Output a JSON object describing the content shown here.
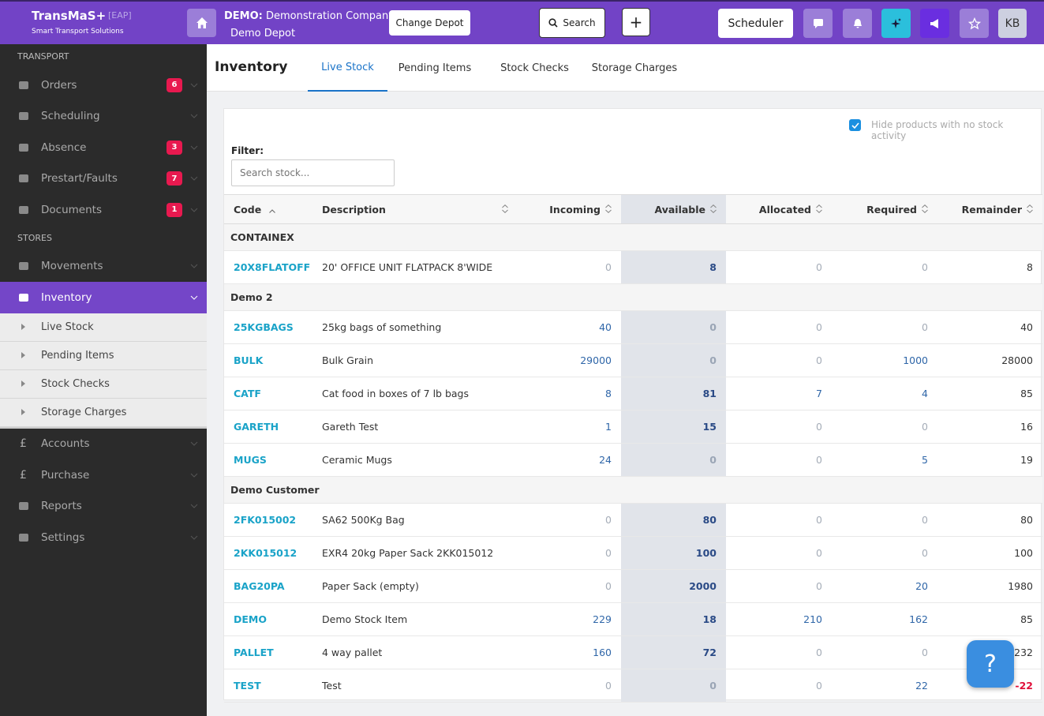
{
  "header": {
    "brand": "TransMaS+",
    "tag": "[EAP]",
    "tagline": "Smart Transport Solutions",
    "company_prefix": "DEMO:",
    "company": "Demonstration Company",
    "depot": "Demo Depot",
    "change_depot": "Change Depot",
    "search": "Search",
    "add": "+",
    "scheduler": "Scheduler",
    "avatar": "KB"
  },
  "sidebar": {
    "sections": [
      {
        "title": "TRANSPORT",
        "items": [
          {
            "label": "Orders",
            "badge": 6
          },
          {
            "label": "Scheduling"
          },
          {
            "label": "Absence",
            "badge": 3
          },
          {
            "label": "Prestart/Faults",
            "badge": 7
          },
          {
            "label": "Documents",
            "badge": 1
          }
        ]
      },
      {
        "title": "STORES",
        "items": [
          {
            "label": "Movements"
          },
          {
            "label": "Inventory",
            "active": true,
            "children": [
              "Live Stock",
              "Pending Items",
              "Stock Checks",
              "Storage Charges"
            ]
          },
          {
            "label": "Accounts",
            "icon": "£"
          },
          {
            "label": "Purchase",
            "icon": "£"
          },
          {
            "label": "Reports"
          },
          {
            "label": "Settings"
          }
        ]
      }
    ]
  },
  "main": {
    "title": "Inventory",
    "tabs": [
      "Live Stock",
      "Pending Items",
      "Stock Checks",
      "Storage Charges"
    ],
    "active_tab": 0,
    "hide_label": "Hide products with no stock activity",
    "filter_label": "Filter:",
    "filter_placeholder": "Search stock...",
    "help": "?"
  },
  "table": {
    "columns": [
      "Code",
      "Description",
      "Incoming",
      "Available",
      "Allocated",
      "Required",
      "Remainder"
    ],
    "sorted_column": 0,
    "highlight_column": 3,
    "groups": [
      {
        "name": "CONTAINEX",
        "rows": [
          [
            "20X8FLATOFF",
            "20' OFFICE UNIT FLATPACK 8'WIDE",
            0,
            8,
            0,
            0,
            8
          ]
        ]
      },
      {
        "name": "Demo 2",
        "rows": [
          [
            "25KGBAGS",
            "25kg bags of something",
            40,
            0,
            0,
            0,
            40
          ],
          [
            "BULK",
            "Bulk Grain",
            29000,
            0,
            0,
            1000,
            28000
          ],
          [
            "CATF",
            "Cat food in boxes of 7 lb bags",
            8,
            81,
            7,
            4,
            85
          ],
          [
            "GARETH",
            "Gareth Test",
            1,
            15,
            0,
            0,
            16
          ],
          [
            "MUGS",
            "Ceramic Mugs",
            24,
            0,
            0,
            5,
            19
          ]
        ]
      },
      {
        "name": "Demo Customer",
        "rows": [
          [
            "2FK015002",
            "SA62 500Kg Bag",
            0,
            80,
            0,
            0,
            80
          ],
          [
            "2KK015012",
            "EXR4 20kg Paper Sack 2KK015012",
            0,
            100,
            0,
            0,
            100
          ],
          [
            "BAG20PA",
            "Paper Sack (empty)",
            0,
            2000,
            0,
            20,
            1980
          ],
          [
            "DEMO",
            "Demo Stock Item",
            229,
            18,
            210,
            162,
            85
          ],
          [
            "PALLET",
            "4 way pallet",
            160,
            72,
            0,
            0,
            232
          ],
          [
            "TEST",
            "Test",
            0,
            0,
            0,
            22,
            -22
          ]
        ]
      }
    ]
  }
}
